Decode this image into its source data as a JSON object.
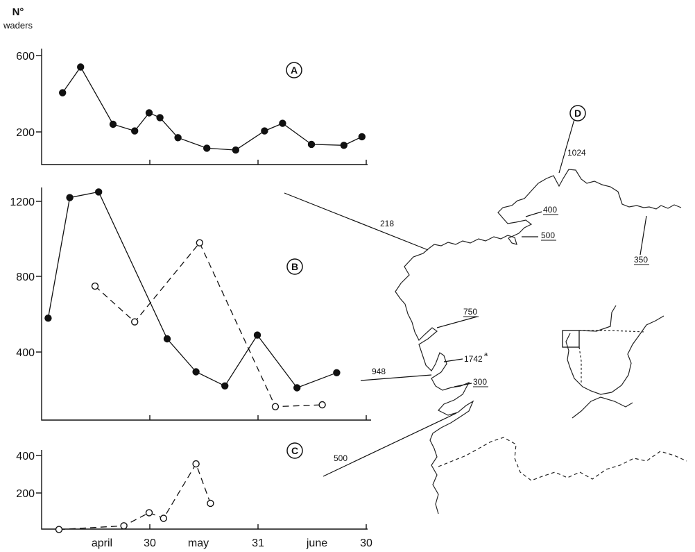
{
  "ylabel_line1": "N°",
  "ylabel_line2": "waders",
  "x_ticks": [
    "april",
    "30",
    "may",
    "31",
    "june",
    "30"
  ],
  "chart_data": [
    {
      "type": "line",
      "panel": "A",
      "ylabel": "N° waders",
      "y_ticks": [
        "600",
        "200"
      ],
      "ylim": [
        0,
        750
      ],
      "series": [
        {
          "style": "solid, filled circles",
          "points": [
            {
              "x": 1,
              "y": 405
            },
            {
              "x": 6,
              "y": 540
            },
            {
              "x": 15,
              "y": 240
            },
            {
              "x": 21,
              "y": 205
            },
            {
              "x": 25,
              "y": 300
            },
            {
              "x": 28,
              "y": 275
            },
            {
              "x": 33,
              "y": 170
            },
            {
              "x": 41,
              "y": 115
            },
            {
              "x": 49,
              "y": 105
            },
            {
              "x": 57,
              "y": 205
            },
            {
              "x": 62,
              "y": 245
            },
            {
              "x": 70,
              "y": 135
            },
            {
              "x": 79,
              "y": 130
            },
            {
              "x": 84,
              "y": 175
            }
          ]
        }
      ]
    },
    {
      "type": "line",
      "panel": "B",
      "y_ticks": [
        "1200",
        "800",
        "400"
      ],
      "ylim": [
        0,
        1400
      ],
      "series": [
        {
          "style": "solid, filled circles",
          "points": [
            {
              "x": -3,
              "y": 580
            },
            {
              "x": 3,
              "y": 1220
            },
            {
              "x": 11,
              "y": 1250
            },
            {
              "x": 30,
              "y": 470
            },
            {
              "x": 38,
              "y": 295
            },
            {
              "x": 46,
              "y": 220
            },
            {
              "x": 55,
              "y": 490
            },
            {
              "x": 66,
              "y": 210
            },
            {
              "x": 77,
              "y": 290
            }
          ]
        },
        {
          "style": "dashed, open circles",
          "points": [
            {
              "x": 10,
              "y": 750
            },
            {
              "x": 21,
              "y": 560
            },
            {
              "x": 39,
              "y": 980
            },
            {
              "x": 60,
              "y": 110
            },
            {
              "x": 73,
              "y": 120
            }
          ]
        }
      ]
    },
    {
      "type": "line",
      "panel": "C",
      "y_ticks": [
        "400",
        "200"
      ],
      "ylim": [
        0,
        450
      ],
      "series": [
        {
          "style": "dashed, open circles",
          "points": [
            {
              "x": 0,
              "y": 5
            },
            {
              "x": 18,
              "y": 25
            },
            {
              "x": 25,
              "y": 95
            },
            {
              "x": 29,
              "y": 65
            },
            {
              "x": 38,
              "y": 355
            },
            {
              "x": 42,
              "y": 145
            }
          ]
        }
      ]
    }
  ],
  "panel_labels": [
    "A",
    "B",
    "C",
    "D"
  ],
  "map": {
    "labels": [
      "1024",
      "400",
      "500",
      "218",
      "350",
      "750",
      "1742",
      "948",
      "300",
      "500"
    ],
    "superscript": "a"
  }
}
